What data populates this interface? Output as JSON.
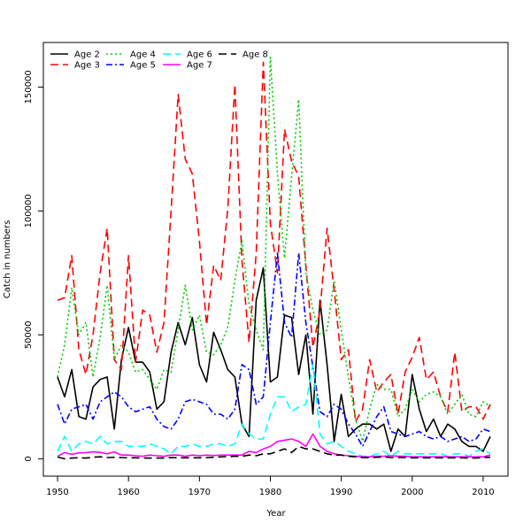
{
  "chart_data": {
    "type": "line",
    "title": "",
    "xlabel": "Year",
    "ylabel": "Catch in numbers",
    "xlim": [
      1948,
      2013.5
    ],
    "ylim": [
      -7000,
      168000
    ],
    "x_ticks": [
      1950,
      1960,
      1970,
      1980,
      1990,
      2000,
      2010
    ],
    "y_ticks": [
      0,
      50000,
      100000,
      150000
    ],
    "grid": false,
    "legend_position": "top-left",
    "x": [
      1950,
      1951,
      1952,
      1953,
      1954,
      1955,
      1956,
      1957,
      1958,
      1959,
      1960,
      1961,
      1962,
      1963,
      1964,
      1965,
      1966,
      1967,
      1968,
      1969,
      1970,
      1971,
      1972,
      1973,
      1974,
      1975,
      1976,
      1977,
      1978,
      1979,
      1980,
      1981,
      1982,
      1983,
      1984,
      1985,
      1986,
      1987,
      1988,
      1989,
      1990,
      1991,
      1992,
      1993,
      1994,
      1995,
      1996,
      1997,
      1998,
      1999,
      2000,
      2001,
      2002,
      2003,
      2004,
      2005,
      2006,
      2007,
      2008,
      2009,
      2010,
      2011
    ],
    "series": [
      {
        "name": "Age 2",
        "color": "#000000",
        "dash": "solid",
        "values": [
          33000,
          25000,
          36000,
          17000,
          16000,
          29000,
          32000,
          33000,
          12000,
          40000,
          53000,
          39000,
          39000,
          35000,
          20000,
          23000,
          43000,
          55000,
          46000,
          57000,
          38000,
          31000,
          51000,
          44000,
          36000,
          33000,
          14000,
          9000,
          64000,
          77000,
          31000,
          33000,
          58000,
          57000,
          34000,
          50000,
          18000,
          64000,
          38000,
          7000,
          26000,
          9000,
          12000,
          14000,
          14000,
          12000,
          14000,
          3000,
          12000,
          9000,
          34000,
          20000,
          11000,
          16000,
          9000,
          14000,
          12000,
          7000,
          5000,
          5000,
          3000,
          9000
        ]
      },
      {
        "name": "Age 3",
        "color": "#ff0000",
        "dash": "9,5",
        "values": [
          64000,
          65000,
          82000,
          44000,
          34000,
          50000,
          75000,
          93000,
          40000,
          36000,
          82000,
          39000,
          60000,
          58000,
          43000,
          55000,
          100000,
          147000,
          121000,
          115000,
          88000,
          54000,
          78000,
          72000,
          101000,
          151000,
          80000,
          47000,
          83000,
          160000,
          95000,
          75000,
          133000,
          120000,
          114000,
          78000,
          45000,
          60000,
          93000,
          68000,
          40000,
          44000,
          15000,
          20000,
          40000,
          27000,
          31000,
          34000,
          18000,
          35000,
          41000,
          49000,
          32000,
          35000,
          25000,
          19000,
          43000,
          19000,
          21000,
          21000,
          16000,
          22000
        ]
      },
      {
        "name": "Age 4",
        "color": "#00cc00",
        "dash": "2,3",
        "values": [
          33000,
          46000,
          69000,
          50000,
          55000,
          33000,
          49000,
          70000,
          40000,
          46000,
          43000,
          35000,
          36000,
          32000,
          28000,
          36000,
          35000,
          52000,
          70000,
          52000,
          58000,
          43000,
          42000,
          46000,
          53000,
          72000,
          88000,
          62000,
          52000,
          44000,
          162000,
          115000,
          81000,
          114000,
          145000,
          75000,
          60000,
          50000,
          52000,
          72000,
          52000,
          33000,
          16000,
          7000,
          20000,
          30000,
          28000,
          28000,
          17000,
          20000,
          28000,
          23000,
          26000,
          27000,
          25000,
          18000,
          22000,
          26000,
          18000,
          17000,
          23000,
          21000
        ]
      },
      {
        "name": "Age 5",
        "color": "#0000ff",
        "dash": "7,3,2,3",
        "values": [
          22000,
          14000,
          20000,
          21000,
          22000,
          16000,
          23000,
          25000,
          27000,
          25000,
          21000,
          19000,
          20000,
          21000,
          16000,
          13000,
          12000,
          16000,
          23000,
          24000,
          23000,
          22000,
          18000,
          18000,
          16000,
          20000,
          38000,
          36000,
          22000,
          25000,
          55000,
          83000,
          55000,
          49000,
          83000,
          55000,
          37000,
          19000,
          17000,
          22000,
          20000,
          14000,
          10000,
          5000,
          11000,
          17000,
          21000,
          11000,
          10000,
          9000,
          10000,
          11000,
          9000,
          8000,
          9000,
          7000,
          8000,
          9000,
          7000,
          8000,
          12000,
          11000
        ]
      },
      {
        "name": "Age 6",
        "color": "#00ffff",
        "dash": "9,5",
        "values": [
          3000,
          9000,
          3000,
          6000,
          7000,
          6000,
          9000,
          6000,
          7000,
          7000,
          5000,
          5000,
          5000,
          6000,
          5000,
          4000,
          2000,
          5000,
          5000,
          6000,
          5000,
          5000,
          6000,
          6000,
          5000,
          6000,
          14000,
          10000,
          8000,
          8000,
          18000,
          25000,
          25000,
          19000,
          21000,
          22000,
          38000,
          10000,
          6000,
          7000,
          5000,
          3000,
          2000,
          1000,
          1000,
          2000,
          3000,
          1000,
          3000,
          2000,
          2000,
          2000,
          2000,
          2000,
          2000,
          1000,
          2000,
          2000,
          1000,
          3000,
          4000,
          2000
        ]
      },
      {
        "name": "Age 7",
        "color": "#ff00ff",
        "dash": "solid",
        "values": [
          1000,
          2500,
          1800,
          2400,
          2500,
          2800,
          2600,
          2000,
          2800,
          1500,
          1500,
          1200,
          1000,
          1500,
          1200,
          1000,
          1500,
          1500,
          1000,
          1500,
          1200,
          1500,
          1300,
          1500,
          1500,
          1500,
          1500,
          3000,
          2500,
          4000,
          5000,
          7000,
          7500,
          8000,
          7000,
          5000,
          10000,
          5000,
          3000,
          2000,
          1500,
          1200,
          1000,
          800,
          800,
          1000,
          1000,
          1200,
          1000,
          1000,
          800,
          800,
          800,
          800,
          800,
          800,
          800,
          800,
          800,
          800,
          800,
          1500
        ]
      },
      {
        "name": "Age 8",
        "color": "#000000",
        "dash": "9,5",
        "values": [
          700,
          0,
          300,
          400,
          300,
          600,
          800,
          500,
          600,
          500,
          400,
          400,
          300,
          300,
          300,
          300,
          500,
          400,
          400,
          400,
          400,
          500,
          600,
          800,
          900,
          1000,
          1000,
          1500,
          1200,
          2000,
          2000,
          3000,
          4000,
          2500,
          5000,
          4000,
          4000,
          3000,
          2000,
          1500,
          1500,
          1000,
          800,
          500,
          400,
          600,
          800,
          500,
          500,
          500,
          400,
          400,
          400,
          400,
          400,
          400,
          400,
          400,
          300,
          300,
          500,
          600
        ]
      }
    ]
  }
}
